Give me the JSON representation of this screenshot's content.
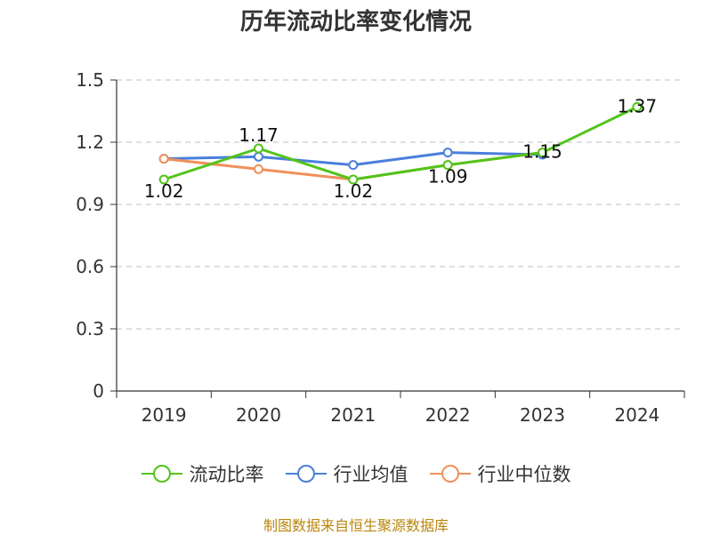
{
  "title": "历年流动比率变化情况",
  "source": "制图数据来自恒生聚源数据库",
  "chart_data": {
    "type": "line",
    "categories": [
      "2019",
      "2020",
      "2021",
      "2022",
      "2023",
      "2024"
    ],
    "ylim": [
      0,
      1.5
    ],
    "yticks": [
      "0",
      "0.3",
      "0.6",
      "0.9",
      "1.2",
      "1.5"
    ],
    "grid": true,
    "legend_position": "bottom",
    "series": [
      {
        "name": "流动比率",
        "color": "#52c41a",
        "values": [
          1.02,
          1.17,
          1.02,
          1.09,
          1.15,
          1.37
        ],
        "labels": [
          "1.02",
          "1.17",
          "1.02",
          "1.09",
          "1.15",
          "1.37"
        ]
      },
      {
        "name": "行业均值",
        "color": "#4a7fdc",
        "values": [
          1.12,
          1.13,
          1.09,
          1.15,
          1.14,
          null
        ]
      },
      {
        "name": "行业中位数",
        "color": "#f0905a",
        "values": [
          1.12,
          1.07,
          1.02,
          1.09,
          1.15,
          null
        ]
      }
    ]
  }
}
